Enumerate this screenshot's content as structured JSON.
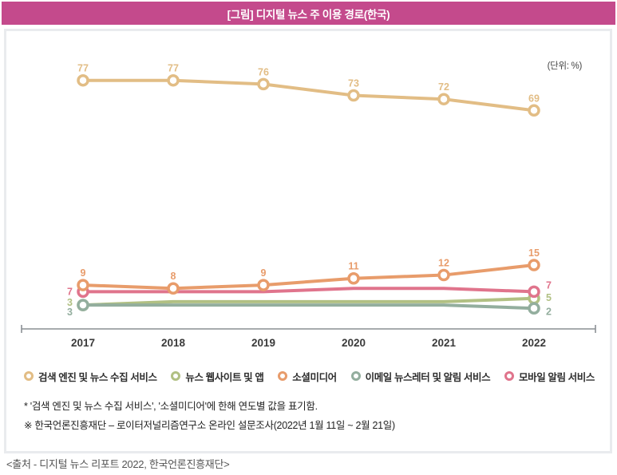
{
  "header": {
    "title": "[그림] 디지털 뉴스 주 이용 경로(한국)",
    "bar_color": "#c44a8c"
  },
  "unit_label": "(단위: %)",
  "chart_data": {
    "type": "line",
    "categories": [
      "2017",
      "2018",
      "2019",
      "2020",
      "2021",
      "2022"
    ],
    "series": [
      {
        "name": "검색 엔진 및 뉴스 수집 서비스",
        "color": "#e2bd85",
        "values": [
          77,
          77,
          76,
          73,
          72,
          69
        ],
        "value_labels": "all"
      },
      {
        "name": "뉴스 웹사이트 및 앱",
        "color": "#b1c083",
        "values": [
          3,
          4,
          4,
          4,
          4,
          5
        ],
        "value_labels": "endpoints"
      },
      {
        "name": "소셜미디어",
        "color": "#e89c6b",
        "values": [
          9,
          8,
          9,
          11,
          12,
          15
        ],
        "value_labels": "all"
      },
      {
        "name": "이메일 뉴스레터 및 알림 서비스",
        "color": "#93ae9e",
        "values": [
          3,
          3,
          3,
          3,
          3,
          2
        ],
        "value_labels": "endpoints"
      },
      {
        "name": "모바일 알림 서비스",
        "color": "#e0748c",
        "values": [
          7,
          7,
          7,
          8,
          8,
          7
        ],
        "value_labels": "endpoints"
      }
    ],
    "title": "[그림] 디지털 뉴스 주 이용 경로(한국)",
    "xlabel": "",
    "ylabel": "",
    "unit": "%",
    "grid": false,
    "legend_position": "bottom",
    "notes": "값 표기는 '검색 엔진 및 뉴스 수집 서비스'와 '소셜미디어'만 전 연도, 나머지는 2017년과 2022년만 표기"
  },
  "axis": {
    "color": "#8a8f94",
    "year_label_color": "#3a3a3a"
  },
  "footnotes": [
    "* '검색 엔진 및 뉴스 수집 서비스', '소셜미디어'에 한해 연도별 값을 표기함.",
    "※ 한국언론진흥재단 – 로이터저널리즘연구소 온라인 설문조사(2022년 1월 11일 ~ 2월 21일)"
  ],
  "source": "<출처 - 디지털 뉴스 리포트 2022, 한국언론진흥재단>"
}
